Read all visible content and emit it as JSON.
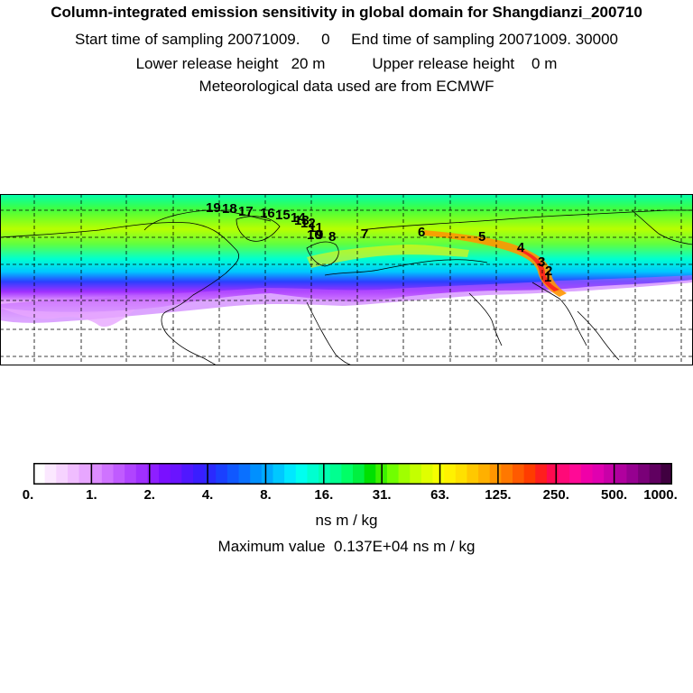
{
  "header": {
    "title": "Column-integrated emission sensitivity in global domain for Shangdianzi_200710",
    "line2": "Start time of sampling 20071009.     0     End time of sampling 20071009. 30000",
    "line3": "Lower release height   20 m           Upper release height    0 m",
    "line4": "Meteorological data used are from ECMWF"
  },
  "colorbar": {
    "tick_labels": [
      "0.",
      "1.",
      "2.",
      "4.",
      "8.",
      "16.",
      "31.",
      "63.",
      "125.",
      "250.",
      "500.",
      "1000."
    ],
    "colors": [
      "#ffffff",
      "#fbe8ff",
      "#f6d3ff",
      "#f0bdff",
      "#e7a6ff",
      "#dc8cff",
      "#cf73ff",
      "#c05bff",
      "#b044ff",
      "#a030ff",
      "#8e1fff",
      "#7a10ff",
      "#6a14ff",
      "#5018ff",
      "#3a1eff",
      "#2a2aff",
      "#1a40ff",
      "#1058ff",
      "#0a70ff",
      "#0090ff",
      "#00aaff",
      "#00c8ff",
      "#00e8ff",
      "#00fff0",
      "#00ffd0",
      "#00ffb0",
      "#00ff90",
      "#00ff66",
      "#00f040",
      "#00e000",
      "#3cf000",
      "#70ff00",
      "#a0ff00",
      "#c4ff00",
      "#e0ff00",
      "#f6ff00",
      "#fff200",
      "#ffe000",
      "#ffc800",
      "#ffb000",
      "#ff9600",
      "#ff7800",
      "#ff5a00",
      "#ff3c00",
      "#ff1e1e",
      "#ff0a50",
      "#ff0a78",
      "#ff0a96",
      "#f000a8",
      "#e000b0",
      "#c800a8",
      "#b0009e",
      "#960090",
      "#7a0078",
      "#600060",
      "#400040"
    ],
    "units": "ns m / kg"
  },
  "max_value": "Maximum value  0.137E+04 ns m / kg",
  "map": {
    "trajectory_labels": [
      "1",
      "2",
      "3",
      "4",
      "5",
      "6",
      "7",
      "8",
      "9",
      "10",
      "11",
      "12",
      "13",
      "14",
      "15",
      "16",
      "17",
      "18",
      "19"
    ]
  }
}
